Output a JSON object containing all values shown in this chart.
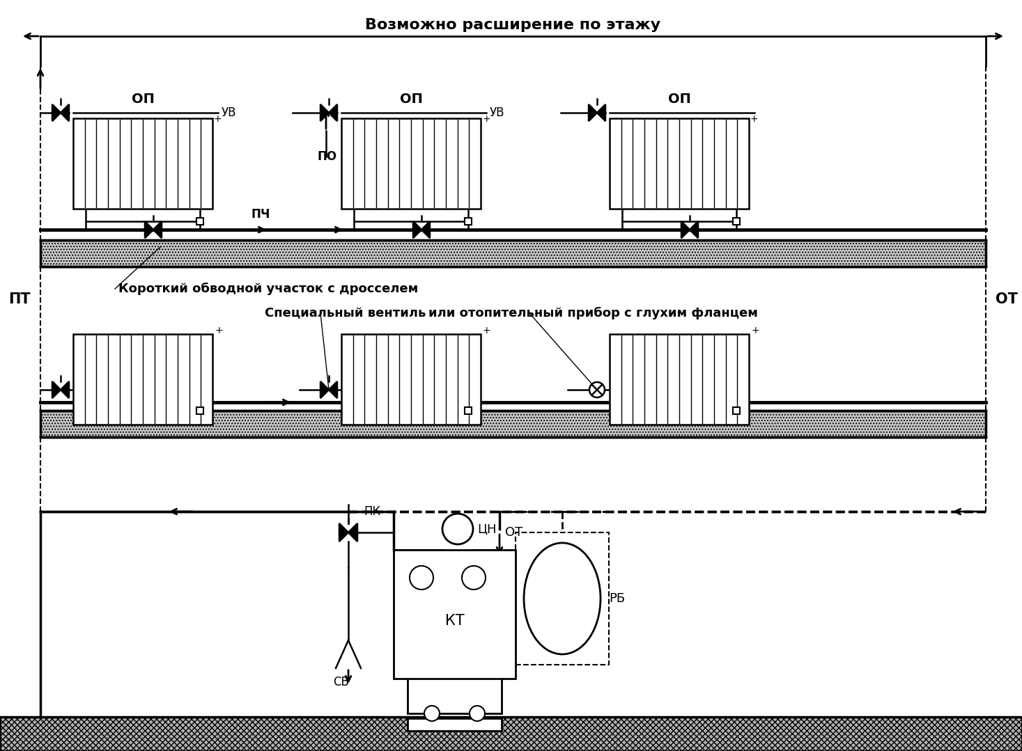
{
  "bg": "#ffffff",
  "bk": "#000000",
  "title": "Возможно расширение по этажу",
  "lbl_OP": "ОП",
  "lbl_UV": "УВ",
  "lbl_PO": "ПО",
  "lbl_PCH": "ПЧ",
  "lbl_PT": "ПТ",
  "lbl_OT": "ОТ",
  "lbl_KT": "КТ",
  "lbl_RB": "РБ",
  "lbl_SV": "СВ",
  "lbl_PK": "ПК",
  "lbl_TsN": "ЦН",
  "lbl_bypass": "Короткий обводной участок с дросселем",
  "lbl_special": "Специальный вентиль",
  "lbl_blind": "или отопительный прибор с глухим фланцем"
}
